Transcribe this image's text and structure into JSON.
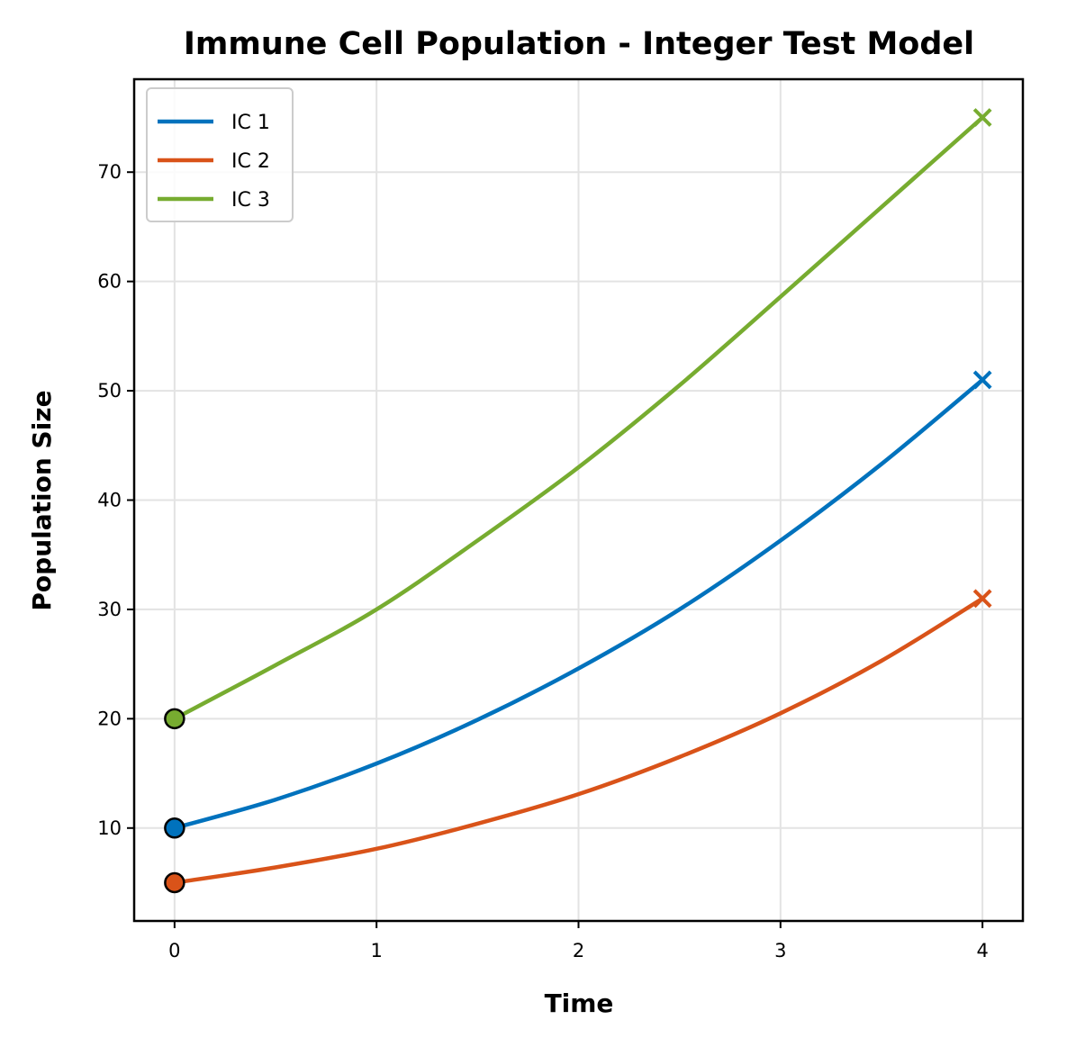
{
  "chart_data": {
    "type": "line",
    "title": "Immune Cell Population - Integer Test Model",
    "xlabel": "Time",
    "ylabel": "Population Size",
    "xlim": [
      -0.2,
      4.2
    ],
    "ylim": [
      1.5,
      78.5
    ],
    "xticks": [
      0,
      1,
      2,
      3,
      4
    ],
    "yticks": [
      10,
      20,
      30,
      40,
      50,
      60,
      70
    ],
    "grid": true,
    "legend_position": "top-left",
    "x": [
      0,
      0.5,
      1,
      1.5,
      2,
      2.5,
      3,
      3.5,
      4
    ],
    "series": [
      {
        "name": "IC 1",
        "color": "#0072bd",
        "values": [
          10,
          12.6,
          15.9,
          19.9,
          24.6,
          30.0,
          36.3,
          43.3,
          51
        ],
        "start_marker": "circle",
        "end_marker": "x"
      },
      {
        "name": "IC 2",
        "color": "#d95319",
        "values": [
          5,
          6.4,
          8.1,
          10.4,
          13.1,
          16.5,
          20.5,
          25.3,
          31
        ],
        "start_marker": "circle",
        "end_marker": "x"
      },
      {
        "name": "IC 3",
        "color": "#77ac30",
        "values": [
          20,
          24.9,
          30.0,
          36.3,
          43.0,
          50.5,
          58.6,
          66.8,
          75
        ],
        "start_marker": "circle",
        "end_marker": "x"
      }
    ]
  }
}
